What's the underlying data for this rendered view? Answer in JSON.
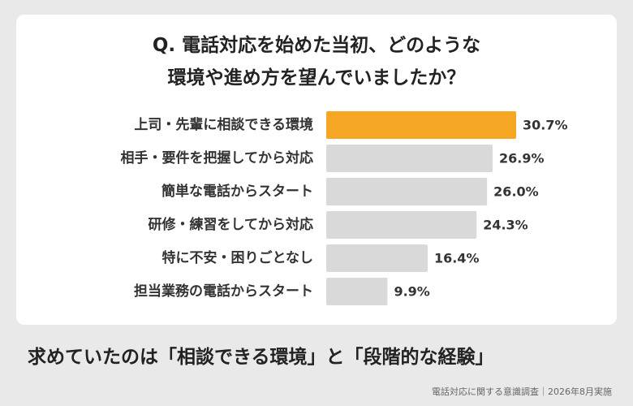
{
  "title_line1": "Q. 電話対応を始めた当初、どのような",
  "title_line2": "環境や進め方を望んでいましたか？",
  "conclusion": "求めていたのは「相談できる環境」と「段階的な経験」",
  "source": "電話対応に関する意識調査｜2026年8月実施",
  "colors": {
    "highlight": "#F5A623",
    "default": "#D9D9D9"
  },
  "chart_data": {
    "type": "bar",
    "orientation": "horizontal",
    "categories": [
      "上司・先輩に相談できる環境",
      "相手・要件を把握してから対応",
      "簡単な電話からスタート",
      "研修・練習をしてから対応",
      "特に不安・困りごとなし",
      "担当業務の電話からスタート"
    ],
    "values": [
      30.7,
      26.9,
      26.0,
      24.3,
      16.4,
      9.9
    ],
    "value_labels": [
      "30.7%",
      "26.9%",
      "26.0%",
      "24.3%",
      "16.4%",
      "9.9%"
    ],
    "highlight_index": 0,
    "title": "Q. 電話対応を始めた当初、どのような環境や進め方を望んでいましたか？",
    "xlim": [
      0,
      30.7
    ],
    "grid": false,
    "legend": "none"
  }
}
